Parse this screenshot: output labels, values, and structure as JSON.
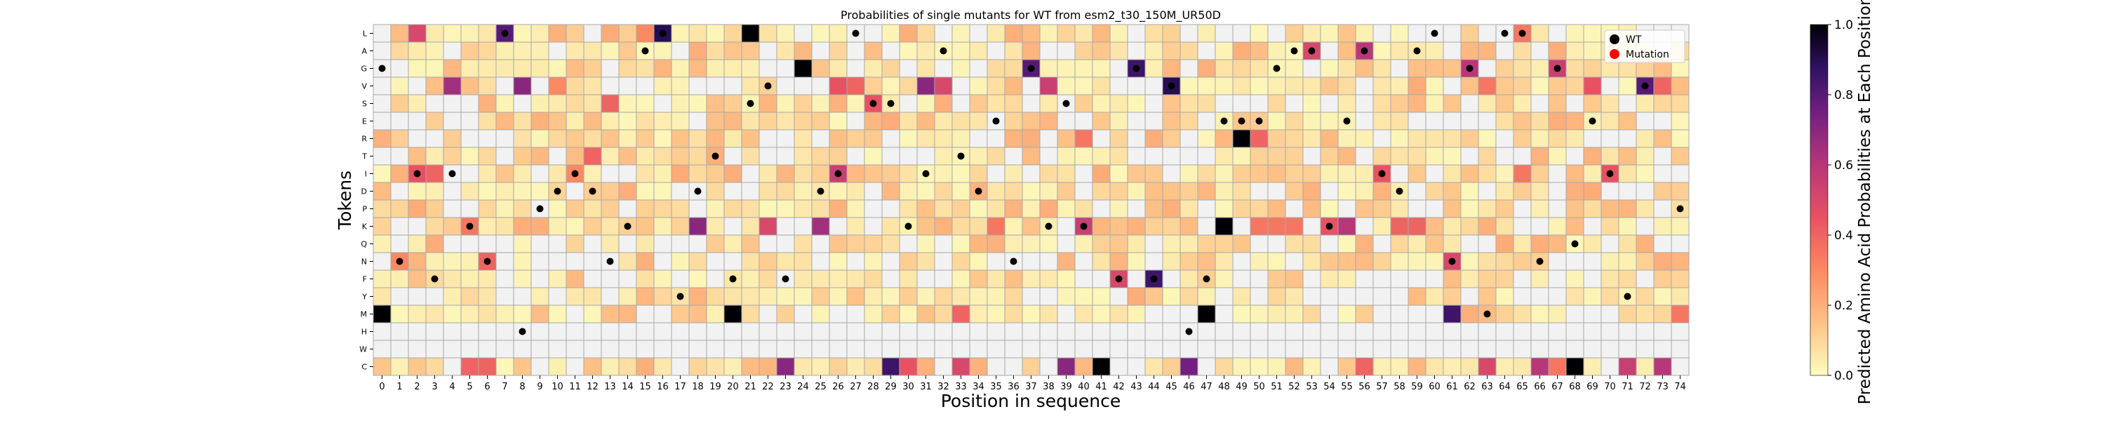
{
  "chart_data": {
    "type": "heatmap",
    "title": "Probabilities of single mutants for WT from esm2_t30_150M_UR50D",
    "xlabel": "Position in sequence",
    "ylabel": "Tokens",
    "colorbar_label": "Predicted Amino Acid Probabilities at Each Position",
    "colormap": "magma_r",
    "vmin": 0.0,
    "vmax": 1.0,
    "colorbar_ticks": [
      "0.0",
      "0.2",
      "0.4",
      "0.6",
      "0.8",
      "1.0"
    ],
    "x_categories": [
      "0",
      "1",
      "2",
      "3",
      "4",
      "5",
      "6",
      "7",
      "8",
      "9",
      "10",
      "11",
      "12",
      "13",
      "14",
      "15",
      "16",
      "17",
      "18",
      "19",
      "20",
      "21",
      "22",
      "23",
      "24",
      "25",
      "26",
      "27",
      "28",
      "29",
      "30",
      "31",
      "32",
      "33",
      "34",
      "35",
      "36",
      "37",
      "38",
      "39",
      "40",
      "41",
      "42",
      "43",
      "44",
      "45",
      "46",
      "47",
      "48",
      "49",
      "50",
      "51",
      "52",
      "53",
      "54",
      "55",
      "56",
      "57",
      "58",
      "59",
      "60",
      "61",
      "62",
      "63",
      "64",
      "65",
      "66",
      "67",
      "68",
      "69",
      "70",
      "71",
      "72",
      "73",
      "74"
    ],
    "y_categories": [
      "L",
      "A",
      "G",
      "V",
      "S",
      "E",
      "R",
      "T",
      "I",
      "D",
      "P",
      "K",
      "Q",
      "N",
      "F",
      "Y",
      "M",
      "H",
      "W",
      "C"
    ],
    "legend": {
      "entries": [
        {
          "label": "WT",
          "color": "#000000"
        },
        {
          "label": "Mutation",
          "color": "#ff0000"
        }
      ],
      "position": "top-right"
    },
    "wt_markers": [
      [
        0,
        "G"
      ],
      [
        1,
        "N"
      ],
      [
        2,
        "I"
      ],
      [
        3,
        "F"
      ],
      [
        4,
        "I"
      ],
      [
        5,
        "K"
      ],
      [
        6,
        "N"
      ],
      [
        7,
        "L"
      ],
      [
        8,
        "H"
      ],
      [
        9,
        "P"
      ],
      [
        10,
        "D"
      ],
      [
        11,
        "I"
      ],
      [
        12,
        "D"
      ],
      [
        13,
        "N"
      ],
      [
        14,
        "K"
      ],
      [
        15,
        "A"
      ],
      [
        16,
        "L"
      ],
      [
        17,
        "Y"
      ],
      [
        18,
        "D"
      ],
      [
        19,
        "T"
      ],
      [
        20,
        "F"
      ],
      [
        21,
        "S"
      ],
      [
        22,
        "V"
      ],
      [
        23,
        "F"
      ],
      [
        25,
        "D"
      ],
      [
        26,
        "I"
      ],
      [
        27,
        "L"
      ],
      [
        28,
        "S"
      ],
      [
        29,
        "S"
      ],
      [
        30,
        "K"
      ],
      [
        31,
        "I"
      ],
      [
        32,
        "A"
      ],
      [
        33,
        "T"
      ],
      [
        34,
        "D"
      ],
      [
        35,
        "E"
      ],
      [
        36,
        "N"
      ],
      [
        37,
        "G"
      ],
      [
        38,
        "K"
      ],
      [
        39,
        "S"
      ],
      [
        40,
        "K"
      ],
      [
        42,
        "F"
      ],
      [
        43,
        "G"
      ],
      [
        44,
        "F"
      ],
      [
        45,
        "V"
      ],
      [
        46,
        "H"
      ],
      [
        47,
        "F"
      ],
      [
        48,
        "E"
      ],
      [
        49,
        "E"
      ],
      [
        50,
        "E"
      ],
      [
        51,
        "G"
      ],
      [
        52,
        "A"
      ],
      [
        53,
        "A"
      ],
      [
        54,
        "K"
      ],
      [
        55,
        "E"
      ],
      [
        56,
        "A"
      ],
      [
        57,
        "I"
      ],
      [
        58,
        "D"
      ],
      [
        59,
        "A"
      ],
      [
        60,
        "L"
      ],
      [
        61,
        "N"
      ],
      [
        62,
        "G"
      ],
      [
        63,
        "M"
      ],
      [
        64,
        "L"
      ],
      [
        65,
        "L"
      ],
      [
        66,
        "N"
      ],
      [
        67,
        "G"
      ],
      [
        68,
        "Q"
      ],
      [
        69,
        "E"
      ],
      [
        70,
        "I"
      ],
      [
        71,
        "Y"
      ],
      [
        72,
        "V"
      ],
      [
        74,
        "P"
      ]
    ],
    "dark_cells": [
      [
        0,
        "M",
        1.0
      ],
      [
        1,
        "N",
        0.3
      ],
      [
        2,
        "L",
        0.5
      ],
      [
        2,
        "I",
        0.45
      ],
      [
        3,
        "I",
        0.4
      ],
      [
        4,
        "V",
        0.65
      ],
      [
        5,
        "K",
        0.35
      ],
      [
        5,
        "C",
        0.4
      ],
      [
        6,
        "N",
        0.4
      ],
      [
        6,
        "C",
        0.4
      ],
      [
        7,
        "L",
        0.8
      ],
      [
        8,
        "V",
        0.7
      ],
      [
        9,
        "K",
        0.2
      ],
      [
        10,
        "V",
        0.3
      ],
      [
        11,
        "I",
        0.3
      ],
      [
        12,
        "T",
        0.4
      ],
      [
        13,
        "S",
        0.4
      ],
      [
        15,
        "L",
        0.3
      ],
      [
        16,
        "L",
        0.9
      ],
      [
        18,
        "K",
        0.7
      ],
      [
        20,
        "M",
        1.0
      ],
      [
        21,
        "L",
        1.0
      ],
      [
        22,
        "K",
        0.5
      ],
      [
        23,
        "C",
        0.7
      ],
      [
        24,
        "G",
        1.0
      ],
      [
        25,
        "K",
        0.65
      ],
      [
        26,
        "I",
        0.55
      ],
      [
        26,
        "V",
        0.45
      ],
      [
        27,
        "V",
        0.4
      ],
      [
        28,
        "S",
        0.45
      ],
      [
        29,
        "C",
        0.85
      ],
      [
        30,
        "C",
        0.45
      ],
      [
        31,
        "V",
        0.7
      ],
      [
        32,
        "V",
        0.5
      ],
      [
        33,
        "M",
        0.4
      ],
      [
        33,
        "C",
        0.5
      ],
      [
        35,
        "K",
        0.35
      ],
      [
        37,
        "G",
        0.8
      ],
      [
        38,
        "V",
        0.55
      ],
      [
        39,
        "C",
        0.7
      ],
      [
        40,
        "K",
        0.55
      ],
      [
        40,
        "R",
        0.35
      ],
      [
        41,
        "C",
        1.0
      ],
      [
        42,
        "F",
        0.5
      ],
      [
        43,
        "G",
        0.85
      ],
      [
        44,
        "F",
        0.85
      ],
      [
        45,
        "V",
        0.9
      ],
      [
        46,
        "C",
        0.75
      ],
      [
        47,
        "M",
        1.0
      ],
      [
        48,
        "K",
        1.0
      ],
      [
        49,
        "R",
        1.0
      ],
      [
        50,
        "R",
        0.4
      ],
      [
        50,
        "K",
        0.35
      ],
      [
        51,
        "K",
        0.35
      ],
      [
        52,
        "K",
        0.35
      ],
      [
        53,
        "A",
        0.5
      ],
      [
        54,
        "K",
        0.45
      ],
      [
        55,
        "K",
        0.6
      ],
      [
        56,
        "A",
        0.6
      ],
      [
        56,
        "C",
        0.4
      ],
      [
        57,
        "I",
        0.45
      ],
      [
        58,
        "K",
        0.4
      ],
      [
        59,
        "K",
        0.4
      ],
      [
        61,
        "M",
        0.85
      ],
      [
        61,
        "N",
        0.5
      ],
      [
        62,
        "G",
        0.6
      ],
      [
        63,
        "V",
        0.35
      ],
      [
        63,
        "C",
        0.5
      ],
      [
        65,
        "L",
        0.35
      ],
      [
        65,
        "I",
        0.35
      ],
      [
        66,
        "C",
        0.6
      ],
      [
        67,
        "G",
        0.55
      ],
      [
        67,
        "C",
        0.35
      ],
      [
        68,
        "C",
        1.0
      ],
      [
        69,
        "V",
        0.45
      ],
      [
        70,
        "I",
        0.45
      ],
      [
        71,
        "C",
        0.55
      ],
      [
        72,
        "V",
        0.8
      ],
      [
        73,
        "C",
        0.6
      ],
      [
        73,
        "V",
        0.4
      ],
      [
        74,
        "M",
        0.35
      ]
    ]
  }
}
